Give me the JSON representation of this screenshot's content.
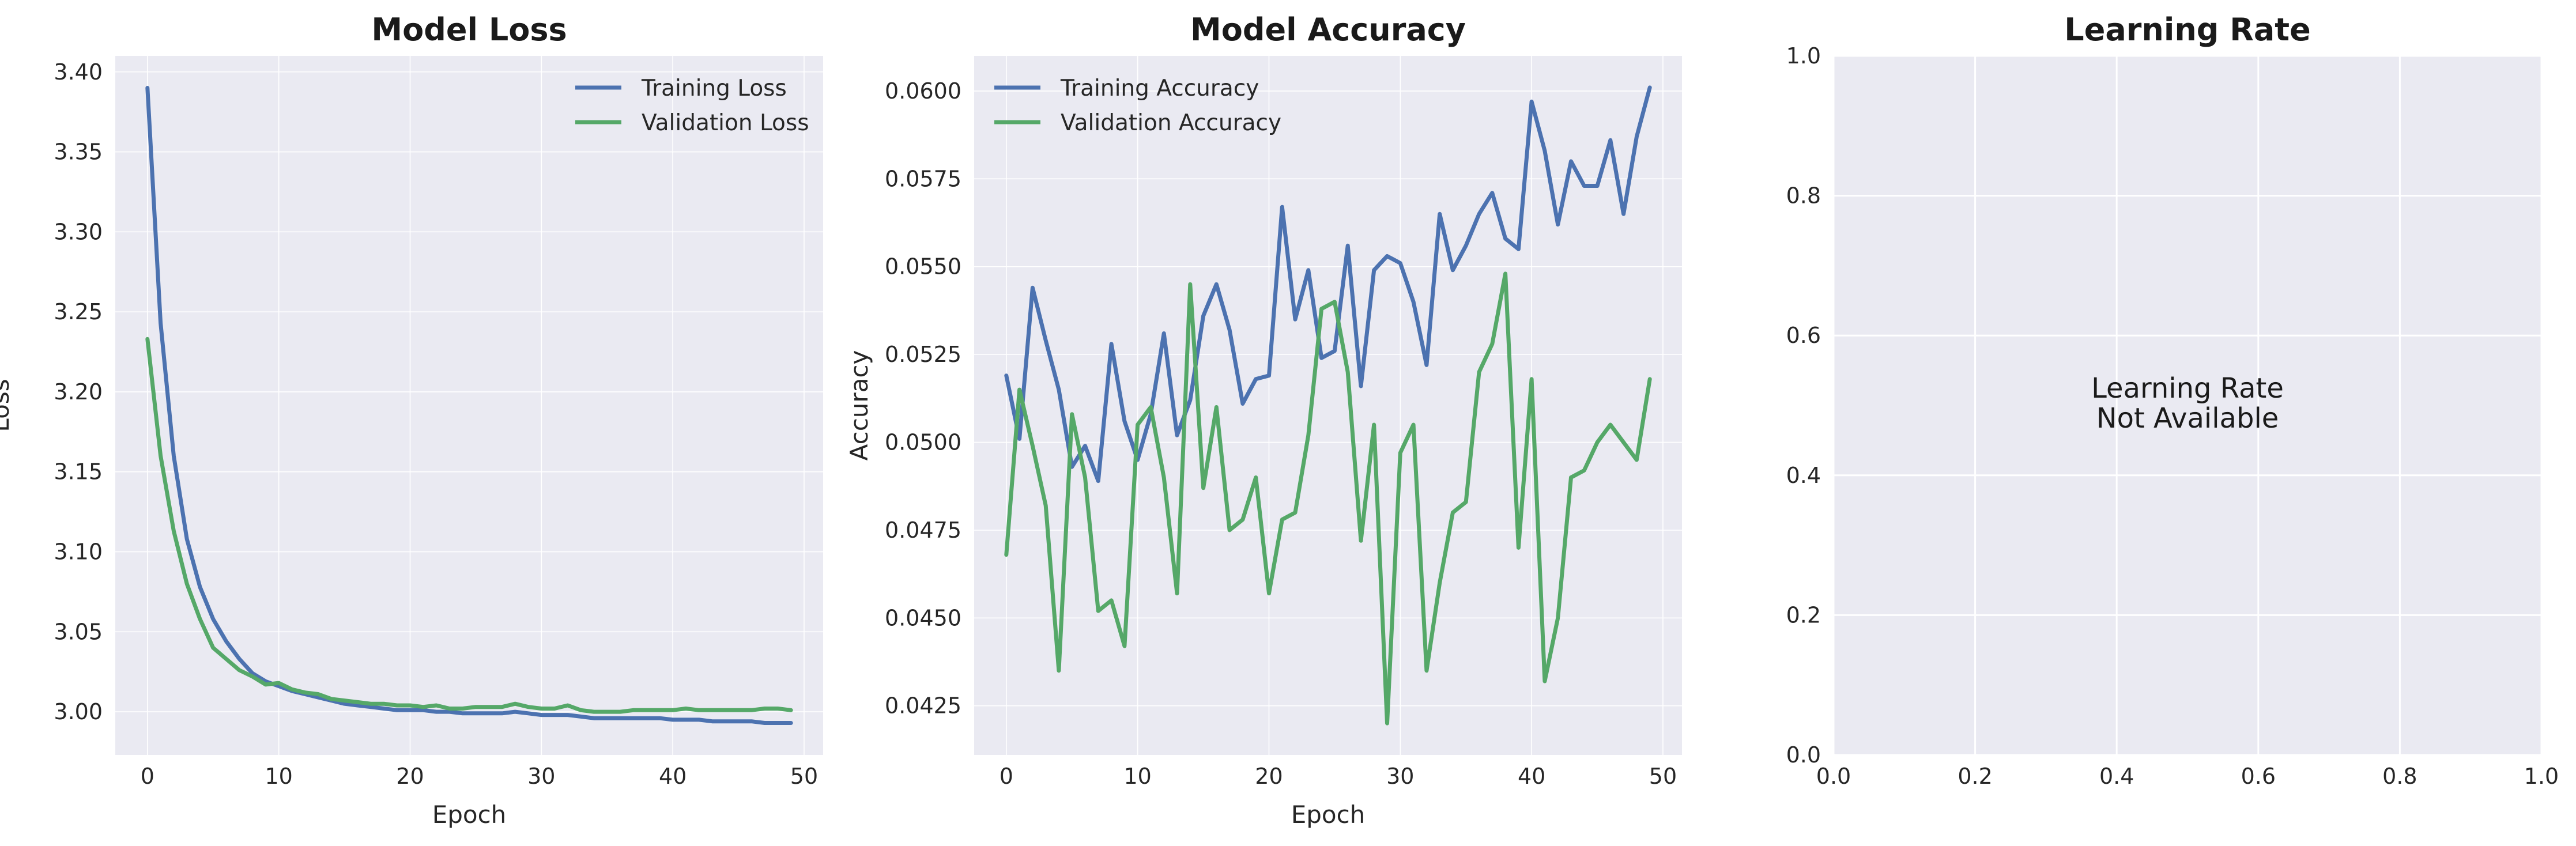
{
  "chart_data": [
    {
      "type": "line",
      "title": "Model Loss",
      "xlabel": "Epoch",
      "ylabel": "Loss",
      "xlim": [
        -2.45,
        51.45
      ],
      "ylim": [
        2.973,
        3.41
      ],
      "xticks": [
        0,
        10,
        20,
        30,
        40,
        50
      ],
      "yticks": [
        3.0,
        3.05,
        3.1,
        3.15,
        3.2,
        3.25,
        3.3,
        3.35,
        3.4
      ],
      "yticks_decimals": 2,
      "grid": true,
      "legend": "upper right",
      "x": [
        0,
        1,
        2,
        3,
        4,
        5,
        6,
        7,
        8,
        9,
        10,
        11,
        12,
        13,
        14,
        15,
        16,
        17,
        18,
        19,
        20,
        21,
        22,
        23,
        24,
        25,
        26,
        27,
        28,
        29,
        30,
        31,
        32,
        33,
        34,
        35,
        36,
        37,
        38,
        39,
        40,
        41,
        42,
        43,
        44,
        45,
        46,
        47,
        48,
        49
      ],
      "series": [
        {
          "name": "Training Loss",
          "color": "#4c72b0",
          "values": [
            3.39,
            3.243,
            3.16,
            3.108,
            3.078,
            3.058,
            3.044,
            3.033,
            3.024,
            3.019,
            3.016,
            3.013,
            3.011,
            3.009,
            3.007,
            3.005,
            3.004,
            3.003,
            3.002,
            3.001,
            3.001,
            3.001,
            3.0,
            3.0,
            2.999,
            2.999,
            2.999,
            2.999,
            3.0,
            2.999,
            2.998,
            2.998,
            2.998,
            2.997,
            2.996,
            2.996,
            2.996,
            2.996,
            2.996,
            2.996,
            2.995,
            2.995,
            2.995,
            2.994,
            2.994,
            2.994,
            2.994,
            2.993,
            2.993,
            2.993
          ]
        },
        {
          "name": "Validation Loss",
          "color": "#55a868",
          "values": [
            3.233,
            3.16,
            3.113,
            3.08,
            3.058,
            3.04,
            3.033,
            3.026,
            3.022,
            3.017,
            3.018,
            3.014,
            3.012,
            3.011,
            3.008,
            3.007,
            3.006,
            3.005,
            3.005,
            3.004,
            3.004,
            3.003,
            3.004,
            3.002,
            3.002,
            3.003,
            3.003,
            3.003,
            3.005,
            3.003,
            3.002,
            3.002,
            3.004,
            3.001,
            3.0,
            3.0,
            3.0,
            3.001,
            3.001,
            3.001,
            3.001,
            3.002,
            3.001,
            3.001,
            3.001,
            3.001,
            3.001,
            3.002,
            3.002,
            3.001
          ]
        }
      ]
    },
    {
      "type": "line",
      "title": "Model Accuracy",
      "xlabel": "Epoch",
      "ylabel": "Accuracy",
      "xlim": [
        -2.45,
        51.45
      ],
      "ylim": [
        0.0411,
        0.061
      ],
      "xticks": [
        0,
        10,
        20,
        30,
        40,
        50
      ],
      "yticks": [
        0.0425,
        0.045,
        0.0475,
        0.05,
        0.0525,
        0.055,
        0.0575,
        0.06
      ],
      "yticks_decimals": 4,
      "grid": true,
      "legend": "upper left",
      "x": [
        0,
        1,
        2,
        3,
        4,
        5,
        6,
        7,
        8,
        9,
        10,
        11,
        12,
        13,
        14,
        15,
        16,
        17,
        18,
        19,
        20,
        21,
        22,
        23,
        24,
        25,
        26,
        27,
        28,
        29,
        30,
        31,
        32,
        33,
        34,
        35,
        36,
        37,
        38,
        39,
        40,
        41,
        42,
        43,
        44,
        45,
        46,
        47,
        48,
        49
      ],
      "series": [
        {
          "name": "Training Accuracy",
          "color": "#4c72b0",
          "values": [
            0.0519,
            0.0501,
            0.0544,
            0.0529,
            0.0515,
            0.0493,
            0.0499,
            0.0489,
            0.0528,
            0.0506,
            0.0495,
            0.0508,
            0.0531,
            0.0502,
            0.0512,
            0.0536,
            0.0545,
            0.0532,
            0.0511,
            0.0518,
            0.0519,
            0.0567,
            0.0535,
            0.0549,
            0.0524,
            0.0526,
            0.0556,
            0.0516,
            0.0549,
            0.0553,
            0.0551,
            0.054,
            0.0522,
            0.0565,
            0.0549,
            0.0556,
            0.0565,
            0.0571,
            0.0558,
            0.0555,
            0.0597,
            0.0583,
            0.0562,
            0.058,
            0.0573,
            0.0573,
            0.0586,
            0.0565,
            0.0587,
            0.0601
          ]
        },
        {
          "name": "Validation Accuracy",
          "color": "#55a868",
          "values": [
            0.0468,
            0.0515,
            0.0499,
            0.0482,
            0.0435,
            0.0508,
            0.049,
            0.0452,
            0.0455,
            0.0442,
            0.0505,
            0.051,
            0.049,
            0.0457,
            0.0545,
            0.0487,
            0.051,
            0.0475,
            0.0478,
            0.049,
            0.0457,
            0.0478,
            0.048,
            0.0502,
            0.0538,
            0.054,
            0.052,
            0.0472,
            0.0505,
            0.042,
            0.0497,
            0.0505,
            0.0435,
            0.046,
            0.048,
            0.0483,
            0.052,
            0.0528,
            0.0548,
            0.047,
            0.0518,
            0.0432,
            0.045,
            0.049,
            0.0492,
            0.05,
            0.0505,
            0.05,
            0.0495,
            0.0518
          ]
        }
      ]
    },
    {
      "type": "line",
      "title": "Learning Rate",
      "xlabel": "",
      "ylabel": "",
      "xlim": [
        0,
        1
      ],
      "ylim": [
        0,
        1
      ],
      "xticks": [
        0.0,
        0.2,
        0.4,
        0.6,
        0.8,
        1.0
      ],
      "yticks": [
        0.0,
        0.2,
        0.4,
        0.6,
        0.8,
        1.0
      ],
      "yticks_decimals": 1,
      "grid": true,
      "annotation": [
        "Learning Rate",
        "Not Available"
      ],
      "series": []
    }
  ]
}
